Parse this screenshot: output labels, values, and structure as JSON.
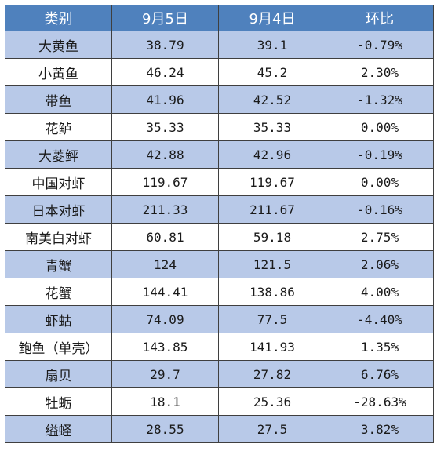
{
  "table": {
    "header_bg": "#4f81bd",
    "odd_row_bg": "#b8c9e8",
    "even_row_bg": "#ffffff",
    "columns": [
      "类别",
      "9月5日",
      "9月4日",
      "环比"
    ],
    "rows": [
      [
        "大黄鱼",
        "38.79",
        "39.1",
        "-0.79%"
      ],
      [
        "小黄鱼",
        "46.24",
        "45.2",
        "2.30%"
      ],
      [
        "带鱼",
        "41.96",
        "42.52",
        "-1.32%"
      ],
      [
        "花鲈",
        "35.33",
        "35.33",
        "0.00%"
      ],
      [
        "大菱鲆",
        "42.88",
        "42.96",
        "-0.19%"
      ],
      [
        "中国对虾",
        "119.67",
        "119.67",
        "0.00%"
      ],
      [
        "日本对虾",
        "211.33",
        "211.67",
        "-0.16%"
      ],
      [
        "南美白对虾",
        "60.81",
        "59.18",
        "2.75%"
      ],
      [
        "青蟹",
        "124",
        "121.5",
        "2.06%"
      ],
      [
        "花蟹",
        "144.41",
        "138.86",
        "4.00%"
      ],
      [
        "虾蛄",
        "74.09",
        "77.5",
        "-4.40%"
      ],
      [
        "鲍鱼（单壳）",
        "143.85",
        "141.93",
        "1.35%"
      ],
      [
        "扇贝",
        "29.7",
        "27.82",
        "6.76%"
      ],
      [
        "牡蛎",
        "18.1",
        "25.36",
        "-28.63%"
      ],
      [
        "缢蛏",
        "28.55",
        "27.5",
        "3.82%"
      ]
    ]
  }
}
